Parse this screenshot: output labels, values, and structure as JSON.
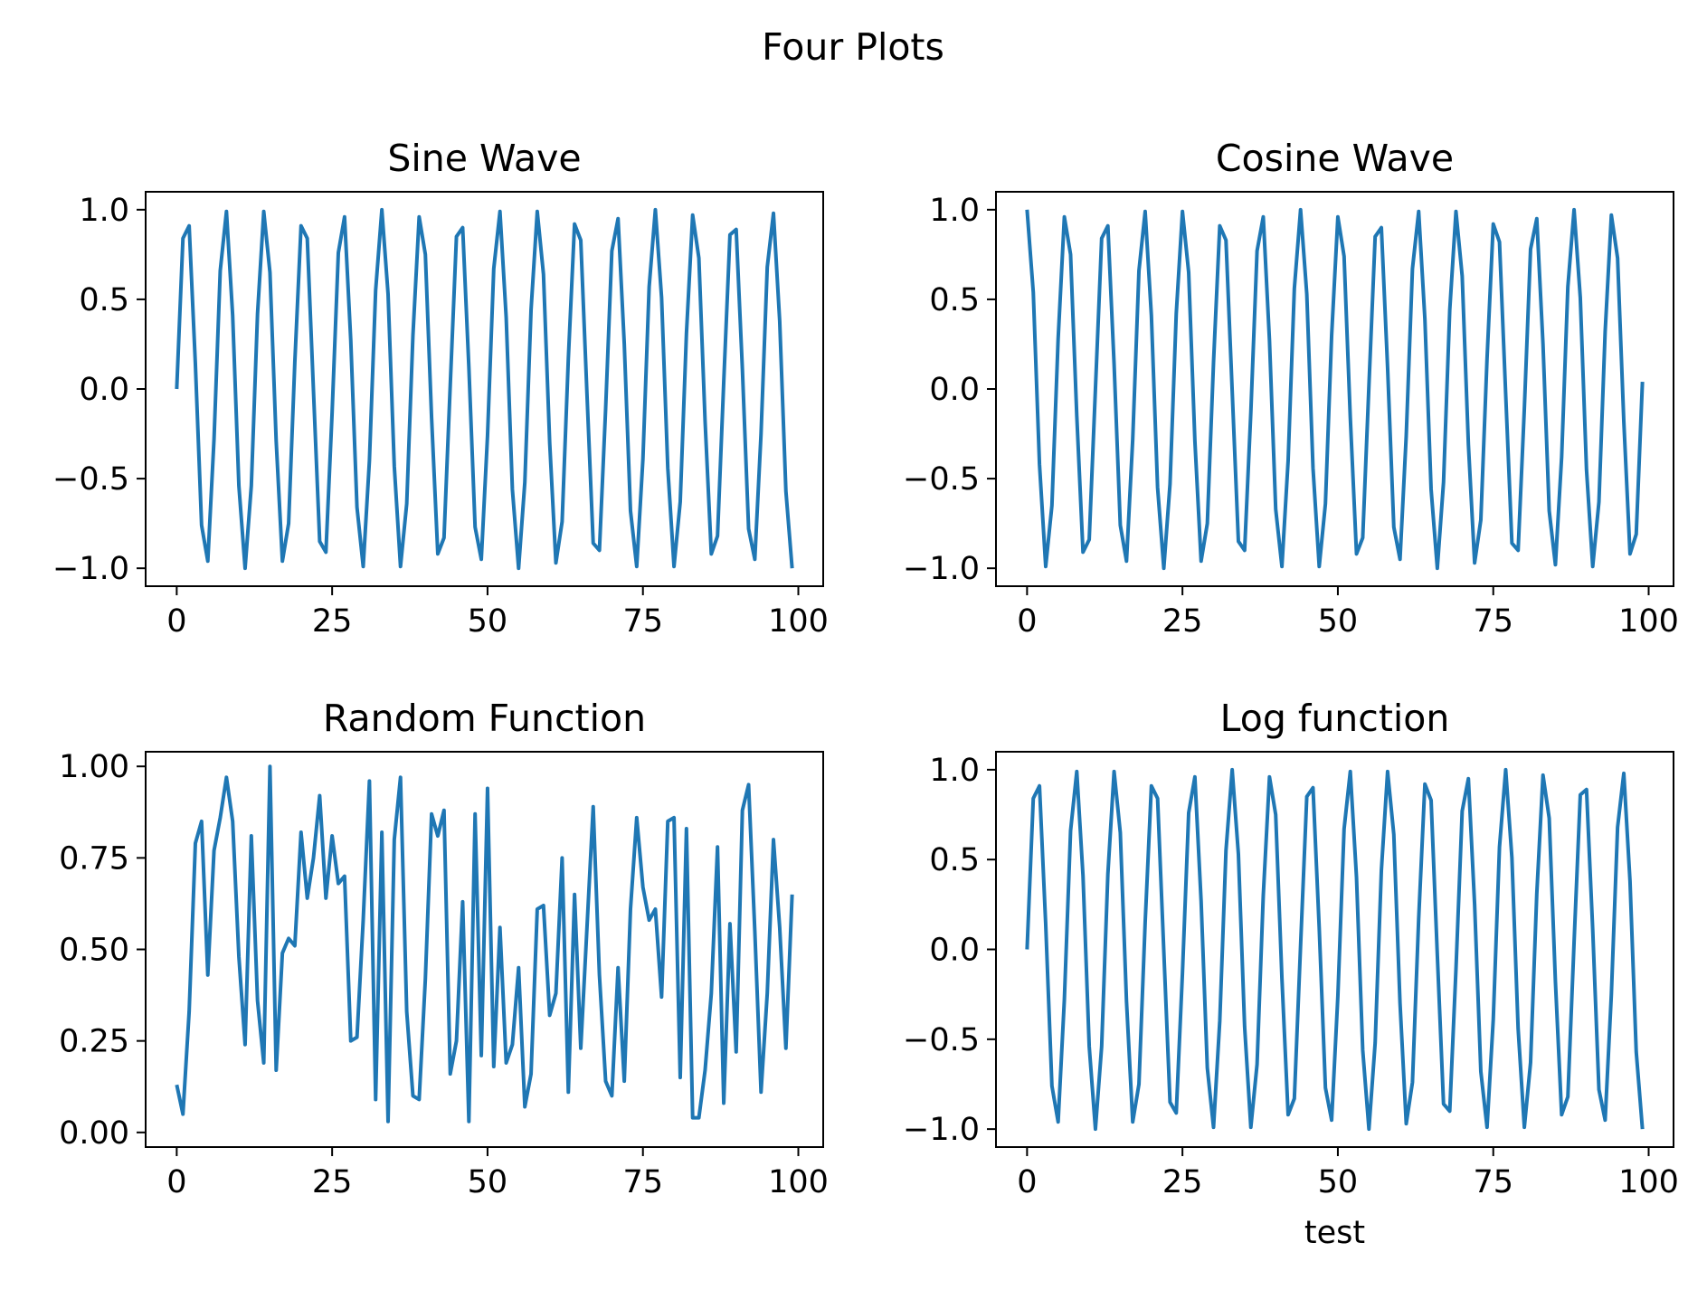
{
  "figure": {
    "suptitle": "Four Plots"
  },
  "colors": {
    "line": "#1f77b4"
  },
  "chart_data": [
    {
      "type": "line",
      "title": "Sine Wave",
      "xlabel": "",
      "ylabel": "",
      "xlim": [
        -5,
        104
      ],
      "ylim": [
        -1.1,
        1.1
      ],
      "xticks": [
        0,
        25,
        50,
        75,
        100
      ],
      "xtick_labels": [
        "0",
        "25",
        "50",
        "75",
        "100"
      ],
      "yticks": [
        1.0,
        0.5,
        0.0,
        -0.5,
        -1.0
      ],
      "ytick_labels": [
        "1.0",
        "0.5",
        "0.0",
        "−0.5",
        "−1.0"
      ],
      "grid": false,
      "series": [
        {
          "x_start": 0,
          "x_step": 1,
          "values": [
            0.0,
            0.84,
            0.91,
            0.14,
            -0.76,
            -0.96,
            -0.28,
            0.66,
            0.99,
            0.41,
            -0.54,
            -1.0,
            -0.54,
            0.42,
            0.99,
            0.65,
            -0.29,
            -0.96,
            -0.75,
            0.15,
            0.91,
            0.84,
            -0.01,
            -0.85,
            -0.91,
            -0.13,
            0.76,
            0.96,
            0.27,
            -0.66,
            -0.99,
            -0.4,
            0.55,
            1.0,
            0.53,
            -0.43,
            -0.99,
            -0.64,
            0.3,
            0.96,
            0.75,
            -0.16,
            -0.92,
            -0.83,
            0.02,
            0.85,
            0.9,
            0.12,
            -0.77,
            -0.95,
            -0.26,
            0.67,
            0.99,
            0.4,
            -0.56,
            -1.0,
            -0.52,
            0.44,
            0.99,
            0.64,
            -0.3,
            -0.97,
            -0.74,
            0.17,
            0.92,
            0.83,
            -0.03,
            -0.86,
            -0.9,
            -0.11,
            0.77,
            0.95,
            0.25,
            -0.68,
            -0.99,
            -0.39,
            0.57,
            1.0,
            0.51,
            -0.44,
            -0.99,
            -0.63,
            0.31,
            0.97,
            0.73,
            -0.18,
            -0.92,
            -0.82,
            0.04,
            0.86,
            0.89,
            0.11,
            -0.78,
            -0.95,
            -0.25,
            0.68,
            0.98,
            0.38,
            -0.57,
            -1.0
          ]
        }
      ]
    },
    {
      "type": "line",
      "title": "Cosine Wave",
      "xlabel": "",
      "ylabel": "",
      "xlim": [
        -5,
        104
      ],
      "ylim": [
        -1.1,
        1.1
      ],
      "xticks": [
        0,
        25,
        50,
        75,
        100
      ],
      "xtick_labels": [
        "0",
        "25",
        "50",
        "75",
        "100"
      ],
      "yticks": [
        1.0,
        0.5,
        0.0,
        -0.5,
        -1.0
      ],
      "ytick_labels": [
        "1.0",
        "0.5",
        "0.0",
        "−0.5",
        "−1.0"
      ],
      "grid": false,
      "series": [
        {
          "x_start": 0,
          "x_step": 1,
          "values": [
            1.0,
            0.54,
            -0.42,
            -0.99,
            -0.65,
            0.28,
            0.96,
            0.75,
            -0.15,
            -0.91,
            -0.84,
            0.0,
            0.84,
            0.91,
            0.14,
            -0.76,
            -0.96,
            -0.28,
            0.66,
            0.99,
            0.41,
            -0.55,
            -1.0,
            -0.53,
            0.42,
            0.99,
            0.65,
            -0.29,
            -0.96,
            -0.75,
            0.15,
            0.91,
            0.83,
            -0.01,
            -0.85,
            -0.9,
            -0.13,
            0.77,
            0.96,
            0.27,
            -0.67,
            -0.99,
            -0.4,
            0.56,
            1.0,
            0.53,
            -0.44,
            -0.99,
            -0.64,
            0.3,
            0.96,
            0.74,
            -0.16,
            -0.92,
            -0.83,
            0.02,
            0.85,
            0.9,
            0.12,
            -0.77,
            -0.95,
            -0.26,
            0.67,
            0.99,
            0.39,
            -0.56,
            -1.0,
            -0.52,
            0.44,
            0.99,
            0.63,
            -0.31,
            -0.97,
            -0.73,
            0.17,
            0.92,
            0.82,
            -0.03,
            -0.86,
            -0.9,
            -0.11,
            0.78,
            0.95,
            0.25,
            -0.68,
            -0.98,
            -0.38,
            0.57,
            1.0,
            0.51,
            -0.45,
            -0.99,
            -0.63,
            0.32,
            0.97,
            0.73,
            -0.18,
            -0.92,
            -0.81,
            0.04
          ]
        }
      ]
    },
    {
      "type": "line",
      "title": "Random Function",
      "xlabel": "",
      "ylabel": "",
      "xlim": [
        -5,
        104
      ],
      "ylim": [
        -0.04,
        1.04
      ],
      "xticks": [
        0,
        25,
        50,
        75,
        100
      ],
      "xtick_labels": [
        "0",
        "25",
        "50",
        "75",
        "100"
      ],
      "yticks": [
        1.0,
        0.75,
        0.5,
        0.25,
        0.0
      ],
      "ytick_labels": [
        "1.00",
        "0.75",
        "0.50",
        "0.25",
        "0.00"
      ],
      "grid": false,
      "series": [
        {
          "x_start": 0,
          "x_step": 1,
          "values": [
            0.13,
            0.05,
            0.33,
            0.79,
            0.85,
            0.43,
            0.77,
            0.86,
            0.97,
            0.85,
            0.48,
            0.24,
            0.81,
            0.36,
            0.19,
            1.0,
            0.17,
            0.49,
            0.53,
            0.51,
            0.82,
            0.64,
            0.75,
            0.92,
            0.64,
            0.81,
            0.68,
            0.7,
            0.25,
            0.26,
            0.58,
            0.96,
            0.09,
            0.82,
            0.03,
            0.8,
            0.97,
            0.33,
            0.1,
            0.09,
            0.42,
            0.87,
            0.81,
            0.88,
            0.16,
            0.25,
            0.63,
            0.03,
            0.87,
            0.21,
            0.94,
            0.18,
            0.56,
            0.19,
            0.24,
            0.45,
            0.07,
            0.16,
            0.61,
            0.62,
            0.32,
            0.38,
            0.75,
            0.11,
            0.65,
            0.23,
            0.56,
            0.89,
            0.43,
            0.14,
            0.1,
            0.45,
            0.14,
            0.61,
            0.86,
            0.67,
            0.58,
            0.61,
            0.37,
            0.85,
            0.86,
            0.15,
            0.83,
            0.04,
            0.04,
            0.17,
            0.38,
            0.78,
            0.08,
            0.57,
            0.22,
            0.88,
            0.95,
            0.55,
            0.11,
            0.38,
            0.8,
            0.56,
            0.23,
            0.65
          ]
        }
      ]
    },
    {
      "type": "line",
      "title": "Log function",
      "xlabel": "test",
      "ylabel": "",
      "xlim": [
        -5,
        104
      ],
      "ylim": [
        -1.1,
        1.1
      ],
      "xticks": [
        0,
        25,
        50,
        75,
        100
      ],
      "xtick_labels": [
        "0",
        "25",
        "50",
        "75",
        "100"
      ],
      "yticks": [
        1.0,
        0.5,
        0.0,
        -0.5,
        -1.0
      ],
      "ytick_labels": [
        "1.0",
        "0.5",
        "0.0",
        "−0.5",
        "−1.0"
      ],
      "grid": false,
      "series": [
        {
          "x_start": 0,
          "x_step": 1,
          "values": [
            0.0,
            0.84,
            0.91,
            0.14,
            -0.76,
            -0.96,
            -0.28,
            0.66,
            0.99,
            0.41,
            -0.54,
            -1.0,
            -0.54,
            0.42,
            0.99,
            0.65,
            -0.29,
            -0.96,
            -0.75,
            0.15,
            0.91,
            0.84,
            -0.01,
            -0.85,
            -0.91,
            -0.13,
            0.76,
            0.96,
            0.27,
            -0.66,
            -0.99,
            -0.4,
            0.55,
            1.0,
            0.53,
            -0.43,
            -0.99,
            -0.64,
            0.3,
            0.96,
            0.75,
            -0.16,
            -0.92,
            -0.83,
            0.02,
            0.85,
            0.9,
            0.12,
            -0.77,
            -0.95,
            -0.26,
            0.67,
            0.99,
            0.4,
            -0.56,
            -1.0,
            -0.52,
            0.44,
            0.99,
            0.64,
            -0.3,
            -0.97,
            -0.74,
            0.17,
            0.92,
            0.83,
            -0.03,
            -0.86,
            -0.9,
            -0.11,
            0.77,
            0.95,
            0.25,
            -0.68,
            -0.99,
            -0.39,
            0.57,
            1.0,
            0.51,
            -0.44,
            -0.99,
            -0.63,
            0.31,
            0.97,
            0.73,
            -0.18,
            -0.92,
            -0.82,
            0.04,
            0.86,
            0.89,
            0.11,
            -0.78,
            -0.95,
            -0.25,
            0.68,
            0.98,
            0.38,
            -0.57,
            -1.0
          ]
        }
      ]
    }
  ]
}
